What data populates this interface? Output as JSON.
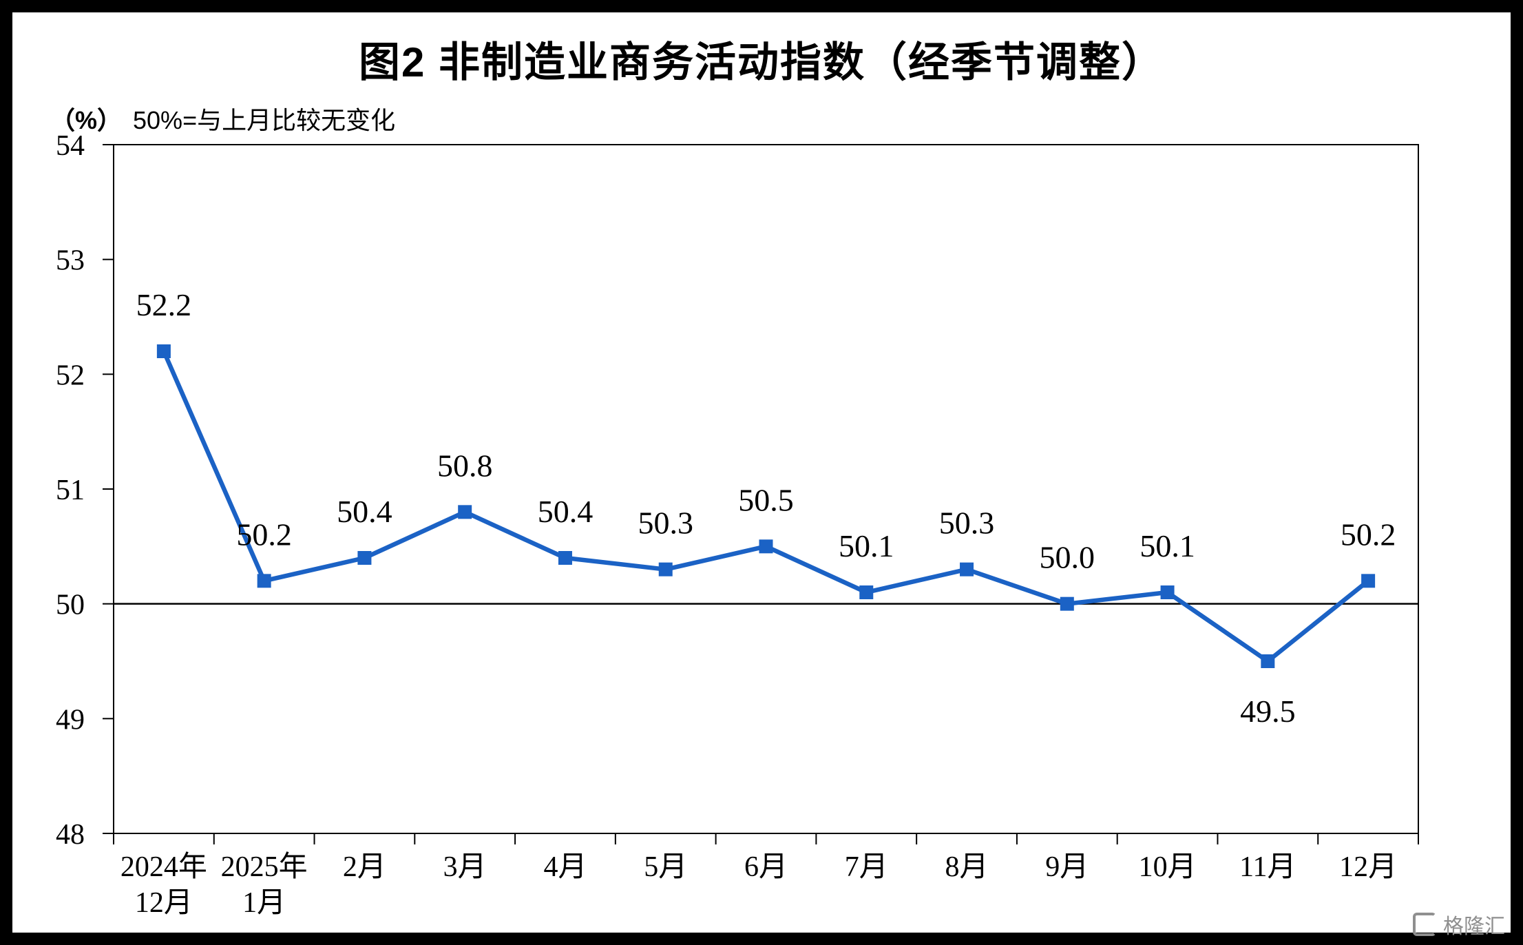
{
  "header": {
    "title": "图2  非制造业商务活动指数（经季节调整）",
    "unit_label": "（%）",
    "subtitle": "50%=与上月比较无变化"
  },
  "watermark": {
    "text": "格隆汇",
    "icon": "gelonghui-logo"
  },
  "chart_data": {
    "type": "line",
    "title": "图2 非制造业商务活动指数（经季节调整）",
    "subtitle": "（%） 50%=与上月比较无变化",
    "categories": [
      "2024年\n12月",
      "2025年\n1月",
      "2月",
      "3月",
      "4月",
      "5月",
      "6月",
      "7月",
      "8月",
      "9月",
      "10月",
      "11月",
      "12月"
    ],
    "series": [
      {
        "name": "非制造业商务活动指数",
        "values": [
          52.2,
          50.2,
          50.4,
          50.8,
          50.4,
          50.3,
          50.5,
          50.1,
          50.3,
          50.0,
          50.1,
          49.5,
          50.2
        ]
      }
    ],
    "data_labels": [
      "52.2",
      "50.2",
      "50.4",
      "50.8",
      "50.4",
      "50.3",
      "50.5",
      "50.1",
      "50.3",
      "50.0",
      "50.1",
      "49.5",
      "50.2"
    ],
    "label_positions": [
      "above",
      "above",
      "above",
      "above",
      "above",
      "above",
      "above",
      "above",
      "above",
      "above",
      "above",
      "below",
      "above"
    ],
    "ylim": [
      48,
      54
    ],
    "ytick_step": 1,
    "reference_line_y": 50,
    "line_color": "#1B62C5",
    "marker": "square",
    "grid": "off",
    "legend": "none",
    "xlabel": "",
    "ylabel": ""
  }
}
